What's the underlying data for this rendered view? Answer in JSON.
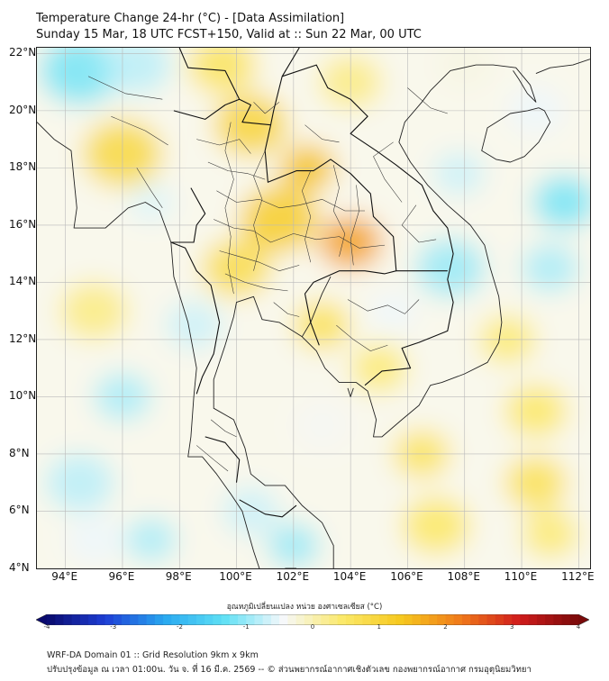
{
  "title": {
    "line1": "Temperature Change 24-hr (°C) - [Data Assimilation]",
    "line2": "Sunday 15 Mar, 18 UTC FCST+150, Valid at :: Sun 22 Mar, 00 UTC"
  },
  "axes": {
    "lat_labels": [
      "22°N",
      "20°N",
      "18°N",
      "16°N",
      "14°N",
      "12°N",
      "10°N",
      "8°N",
      "6°N",
      "4°N"
    ],
    "lon_labels": [
      "94°E",
      "96°E",
      "98°E",
      "100°E",
      "102°E",
      "104°E",
      "106°E",
      "108°E",
      "110°E",
      "112°E"
    ],
    "lat_range": [
      4,
      22.2
    ],
    "lon_range": [
      93,
      112.4
    ]
  },
  "colorbar": {
    "label": "อุณหภูมิเปลี่ยนแปลง หน่วย องศาเซลเซียส (°C)",
    "ticks": [
      "-4",
      "-3",
      "-2",
      "-1",
      "0",
      "1",
      "2",
      "3",
      "4"
    ],
    "range": [
      -4,
      4
    ],
    "colors": [
      "#0a0a6e",
      "#1e3fd6",
      "#29a9f0",
      "#5fe0f5",
      "#f6f8fb",
      "#fbe96a",
      "#f6c81e",
      "#f07a1a",
      "#d01c1c",
      "#7a0a0a"
    ]
  },
  "footer": {
    "line1": "WRF-DA Domain 01 :: Grid Resolution 9km x 9km",
    "line2": "ปรับปรุงข้อมูล ณ เวลา 01:00น. วัน จ. ที่ 16 มี.ค. 2569 -- © ส่วนพยากรณ์อากาศเชิงตัวเลข กองพยากรณ์อากาศ กรมอุตุนิยมวิทยา"
  },
  "field_anomalies": [
    {
      "lon": 94.5,
      "lat": 21.4,
      "dT": -1.2,
      "spread": 1.4
    },
    {
      "lon": 96.5,
      "lat": 21.6,
      "dT": -0.8,
      "spread": 1.2
    },
    {
      "lon": 99.5,
      "lat": 21.6,
      "dT": 0.6,
      "spread": 1.2
    },
    {
      "lon": 100.5,
      "lat": 19.5,
      "dT": 1.0,
      "spread": 1.3
    },
    {
      "lon": 96.0,
      "lat": 18.5,
      "dT": 0.9,
      "spread": 1.4
    },
    {
      "lon": 102.5,
      "lat": 18.0,
      "dT": 1.4,
      "spread": 1.0
    },
    {
      "lon": 101.5,
      "lat": 16.2,
      "dT": 1.2,
      "spread": 1.4
    },
    {
      "lon": 104.0,
      "lat": 15.4,
      "dT": 1.8,
      "spread": 1.1
    },
    {
      "lon": 100.0,
      "lat": 14.5,
      "dT": 0.8,
      "spread": 1.2
    },
    {
      "lon": 103.0,
      "lat": 12.5,
      "dT": 0.7,
      "spread": 1.0
    },
    {
      "lon": 105.0,
      "lat": 11.0,
      "dT": 0.4,
      "spread": 1.0
    },
    {
      "lon": 97.0,
      "lat": 16.8,
      "dT": -0.6,
      "spread": 0.8
    },
    {
      "lon": 98.5,
      "lat": 12.5,
      "dT": -0.7,
      "spread": 1.0
    },
    {
      "lon": 96.0,
      "lat": 10.0,
      "dT": -0.9,
      "spread": 1.0
    },
    {
      "lon": 94.5,
      "lat": 7.0,
      "dT": -0.8,
      "spread": 1.2
    },
    {
      "lon": 95.0,
      "lat": 5.0,
      "dT": -0.5,
      "spread": 1.0
    },
    {
      "lon": 97.0,
      "lat": 5.0,
      "dT": -0.9,
      "spread": 0.9
    },
    {
      "lon": 100.5,
      "lat": 6.0,
      "dT": -0.7,
      "spread": 1.0
    },
    {
      "lon": 102.0,
      "lat": 4.8,
      "dT": -1.0,
      "spread": 0.9
    },
    {
      "lon": 103.0,
      "lat": 9.0,
      "dT": -0.4,
      "spread": 1.0
    },
    {
      "lon": 105.5,
      "lat": 13.0,
      "dT": -0.5,
      "spread": 0.8
    },
    {
      "lon": 107.5,
      "lat": 14.5,
      "dT": -1.0,
      "spread": 1.2
    },
    {
      "lon": 107.8,
      "lat": 17.8,
      "dT": -0.7,
      "spread": 0.9
    },
    {
      "lon": 110.5,
      "lat": 20.0,
      "dT": -0.5,
      "spread": 1.0
    },
    {
      "lon": 111.5,
      "lat": 16.8,
      "dT": -1.2,
      "spread": 1.1
    },
    {
      "lon": 111.0,
      "lat": 14.5,
      "dT": -0.9,
      "spread": 1.0
    },
    {
      "lon": 109.5,
      "lat": 12.0,
      "dT": 0.4,
      "spread": 1.0
    },
    {
      "lon": 110.5,
      "lat": 9.5,
      "dT": 0.5,
      "spread": 1.1
    },
    {
      "lon": 106.5,
      "lat": 8.0,
      "dT": 0.6,
      "spread": 1.0
    },
    {
      "lon": 110.5,
      "lat": 7.0,
      "dT": 0.7,
      "spread": 1.1
    },
    {
      "lon": 107.0,
      "lat": 5.5,
      "dT": 0.5,
      "spread": 1.2
    },
    {
      "lon": 111.0,
      "lat": 5.2,
      "dT": 0.4,
      "spread": 1.0
    },
    {
      "lon": 95.0,
      "lat": 13.0,
      "dT": 0.3,
      "spread": 1.2
    },
    {
      "lon": 104.0,
      "lat": 21.0,
      "dT": 0.3,
      "spread": 1.1
    },
    {
      "lon": 108.0,
      "lat": 21.6,
      "dT": -0.3,
      "spread": 1.0
    }
  ],
  "coastlines": [
    [
      [
        93.0,
        19.6
      ],
      [
        93.6,
        19.0
      ],
      [
        94.2,
        18.6
      ],
      [
        94.3,
        17.6
      ],
      [
        94.4,
        16.6
      ],
      [
        94.3,
        15.9
      ],
      [
        94.9,
        15.9
      ],
      [
        95.4,
        15.9
      ],
      [
        96.2,
        16.6
      ],
      [
        96.8,
        16.8
      ],
      [
        97.3,
        16.5
      ],
      [
        97.7,
        15.4
      ],
      [
        97.8,
        14.2
      ],
      [
        98.3,
        12.6
      ],
      [
        98.6,
        11.0
      ],
      [
        98.5,
        10.0
      ],
      [
        98.4,
        8.6
      ],
      [
        98.3,
        7.9
      ],
      [
        98.8,
        7.9
      ],
      [
        99.3,
        7.3
      ],
      [
        99.8,
        6.6
      ],
      [
        100.2,
        6.0
      ],
      [
        100.4,
        5.3
      ],
      [
        100.6,
        4.6
      ],
      [
        100.8,
        4.0
      ]
    ],
    [
      [
        101.7,
        4.0
      ],
      [
        102.1,
        4.0
      ]
    ],
    [
      [
        103.4,
        4.0
      ],
      [
        103.4,
        4.8
      ],
      [
        103.0,
        5.6
      ],
      [
        102.3,
        6.2
      ],
      [
        101.7,
        6.9
      ],
      [
        101.0,
        6.9
      ],
      [
        100.5,
        7.3
      ],
      [
        100.3,
        8.2
      ],
      [
        99.9,
        9.2
      ],
      [
        99.2,
        9.6
      ],
      [
        99.2,
        10.6
      ],
      [
        99.6,
        11.8
      ],
      [
        99.9,
        12.8
      ],
      [
        100.0,
        13.3
      ],
      [
        100.6,
        13.5
      ],
      [
        100.9,
        12.7
      ],
      [
        101.5,
        12.6
      ],
      [
        102.3,
        12.1
      ],
      [
        102.8,
        11.6
      ],
      [
        103.1,
        11.0
      ],
      [
        103.6,
        10.5
      ],
      [
        104.2,
        10.5
      ],
      [
        104.6,
        10.2
      ],
      [
        104.9,
        9.2
      ],
      [
        104.8,
        8.6
      ],
      [
        105.1,
        8.6
      ],
      [
        105.8,
        9.2
      ],
      [
        106.4,
        9.7
      ],
      [
        106.8,
        10.4
      ],
      [
        107.2,
        10.5
      ],
      [
        108.0,
        10.8
      ],
      [
        108.8,
        11.2
      ],
      [
        109.2,
        11.9
      ],
      [
        109.3,
        12.6
      ],
      [
        109.2,
        13.5
      ],
      [
        108.9,
        14.5
      ],
      [
        108.7,
        15.3
      ],
      [
        108.2,
        16.0
      ],
      [
        107.4,
        16.7
      ],
      [
        106.7,
        17.4
      ],
      [
        106.1,
        18.2
      ],
      [
        105.7,
        18.9
      ],
      [
        105.9,
        19.6
      ],
      [
        106.5,
        20.3
      ],
      [
        106.8,
        20.7
      ],
      [
        107.5,
        21.4
      ],
      [
        108.4,
        21.6
      ],
      [
        109.0,
        21.6
      ],
      [
        109.8,
        21.5
      ],
      [
        110.3,
        20.9
      ],
      [
        110.5,
        20.3
      ],
      [
        110.2,
        20.6
      ],
      [
        109.9,
        21.1
      ],
      [
        109.7,
        21.4
      ]
    ],
    [
      [
        110.6,
        20.1
      ],
      [
        110.2,
        20.0
      ],
      [
        109.6,
        19.9
      ],
      [
        108.8,
        19.4
      ],
      [
        108.6,
        18.6
      ],
      [
        109.1,
        18.3
      ],
      [
        109.6,
        18.2
      ],
      [
        110.1,
        18.4
      ],
      [
        110.6,
        18.9
      ],
      [
        111.0,
        19.6
      ],
      [
        110.8,
        20.0
      ],
      [
        110.6,
        20.1
      ]
    ],
    [
      [
        110.5,
        21.3
      ],
      [
        111.0,
        21.5
      ],
      [
        111.8,
        21.6
      ],
      [
        112.4,
        21.8
      ]
    ],
    [
      [
        102.3,
        12.1
      ],
      [
        102.6,
        12.6
      ],
      [
        103.0,
        13.6
      ],
      [
        103.3,
        14.2
      ]
    ],
    [
      [
        103.9,
        10.3
      ],
      [
        104.0,
        10.0
      ],
      [
        104.1,
        10.3
      ]
    ]
  ],
  "borders": [
    [
      [
        98.0,
        22.2
      ],
      [
        98.3,
        21.5
      ],
      [
        99.6,
        21.4
      ],
      [
        100.1,
        20.4
      ],
      [
        100.5,
        20.2
      ],
      [
        100.2,
        19.6
      ],
      [
        101.2,
        19.5
      ],
      [
        101.0,
        18.6
      ],
      [
        101.1,
        17.5
      ],
      [
        102.1,
        17.9
      ],
      [
        102.7,
        17.9
      ],
      [
        103.3,
        18.3
      ],
      [
        104.0,
        17.8
      ],
      [
        104.7,
        17.1
      ],
      [
        104.8,
        16.3
      ],
      [
        105.5,
        15.6
      ],
      [
        105.6,
        14.4
      ],
      [
        105.2,
        14.3
      ],
      [
        104.5,
        14.4
      ],
      [
        103.6,
        14.4
      ],
      [
        102.7,
        14.0
      ],
      [
        102.4,
        13.6
      ],
      [
        102.6,
        12.6
      ],
      [
        102.9,
        11.8
      ]
    ],
    [
      [
        97.8,
        20.0
      ],
      [
        98.9,
        19.7
      ],
      [
        99.6,
        20.2
      ],
      [
        100.1,
        20.4
      ]
    ],
    [
      [
        97.7,
        15.4
      ],
      [
        98.2,
        15.2
      ],
      [
        98.6,
        14.4
      ],
      [
        99.1,
        13.9
      ],
      [
        99.4,
        12.6
      ],
      [
        99.2,
        11.5
      ],
      [
        98.8,
        10.7
      ],
      [
        98.6,
        10.1
      ]
    ],
    [
      [
        98.4,
        17.3
      ],
      [
        98.9,
        16.4
      ],
      [
        98.6,
        16.0
      ],
      [
        98.5,
        15.4
      ],
      [
        97.7,
        15.4
      ]
    ],
    [
      [
        101.2,
        19.5
      ],
      [
        101.3,
        20.0
      ],
      [
        101.6,
        21.2
      ],
      [
        102.2,
        22.2
      ]
    ],
    [
      [
        101.6,
        21.2
      ],
      [
        102.8,
        21.6
      ],
      [
        103.2,
        20.8
      ],
      [
        104.0,
        20.4
      ],
      [
        104.6,
        19.8
      ],
      [
        104.0,
        19.2
      ],
      [
        104.9,
        18.6
      ],
      [
        105.6,
        18.1
      ],
      [
        106.5,
        17.4
      ],
      [
        106.9,
        16.5
      ],
      [
        107.4,
        15.9
      ],
      [
        107.6,
        15.0
      ],
      [
        107.4,
        14.1
      ],
      [
        107.6,
        13.3
      ],
      [
        107.4,
        12.3
      ],
      [
        106.4,
        11.9
      ],
      [
        105.8,
        11.7
      ],
      [
        106.1,
        11.0
      ],
      [
        105.1,
        10.9
      ],
      [
        104.5,
        10.4
      ]
    ],
    [
      [
        105.6,
        14.4
      ],
      [
        106.2,
        14.4
      ],
      [
        107.4,
        14.4
      ]
    ],
    [
      [
        100.1,
        6.4
      ],
      [
        101.0,
        5.9
      ],
      [
        101.6,
        5.8
      ],
      [
        102.1,
        6.2
      ]
    ],
    [
      [
        98.9,
        8.6
      ],
      [
        99.6,
        8.4
      ],
      [
        100.1,
        7.8
      ],
      [
        100.0,
        7.0
      ]
    ]
  ],
  "provinces": [
    [
      [
        98.6,
        19.0
      ],
      [
        99.4,
        18.8
      ],
      [
        100.1,
        19.0
      ],
      [
        100.5,
        18.5
      ]
    ],
    [
      [
        99.0,
        18.2
      ],
      [
        99.7,
        17.9
      ],
      [
        100.4,
        17.8
      ],
      [
        101.0,
        17.6
      ]
    ],
    [
      [
        99.3,
        17.2
      ],
      [
        100.0,
        16.8
      ],
      [
        100.8,
        16.9
      ],
      [
        101.5,
        16.6
      ],
      [
        102.2,
        16.7
      ],
      [
        103.0,
        16.9
      ],
      [
        103.8,
        16.5
      ],
      [
        104.5,
        16.5
      ]
    ],
    [
      [
        99.2,
        16.2
      ],
      [
        99.9,
        15.9
      ],
      [
        100.6,
        15.8
      ],
      [
        101.2,
        15.4
      ],
      [
        102.0,
        15.7
      ],
      [
        102.8,
        15.5
      ],
      [
        103.6,
        15.6
      ],
      [
        104.3,
        15.2
      ],
      [
        105.2,
        15.3
      ]
    ],
    [
      [
        99.4,
        15.1
      ],
      [
        100.1,
        14.9
      ],
      [
        100.8,
        14.7
      ],
      [
        101.5,
        14.4
      ],
      [
        102.2,
        14.6
      ]
    ],
    [
      [
        99.6,
        14.3
      ],
      [
        100.3,
        14.0
      ],
      [
        101.0,
        13.8
      ],
      [
        101.8,
        13.7
      ]
    ],
    [
      [
        102.6,
        17.9
      ],
      [
        102.3,
        17.2
      ],
      [
        102.6,
        16.3
      ],
      [
        102.4,
        15.5
      ],
      [
        102.6,
        14.7
      ]
    ],
    [
      [
        103.4,
        18.1
      ],
      [
        103.6,
        17.3
      ],
      [
        103.4,
        16.5
      ],
      [
        103.8,
        15.7
      ],
      [
        103.6,
        14.9
      ]
    ],
    [
      [
        101.0,
        18.6
      ],
      [
        100.6,
        17.7
      ],
      [
        100.9,
        16.9
      ],
      [
        100.6,
        16.0
      ],
      [
        100.8,
        15.2
      ],
      [
        100.6,
        14.4
      ]
    ],
    [
      [
        99.8,
        19.6
      ],
      [
        99.6,
        18.6
      ],
      [
        99.9,
        17.6
      ],
      [
        99.6,
        16.6
      ],
      [
        99.8,
        15.6
      ],
      [
        99.7,
        14.6
      ],
      [
        99.9,
        13.6
      ]
    ],
    [
      [
        104.2,
        17.4
      ],
      [
        104.3,
        16.5
      ],
      [
        104.0,
        15.5
      ],
      [
        104.1,
        14.6
      ]
    ],
    [
      [
        102.2,
        12.8
      ],
      [
        101.8,
        12.9
      ],
      [
        101.3,
        13.3
      ]
    ],
    [
      [
        99.1,
        9.2
      ],
      [
        99.6,
        8.8
      ],
      [
        100.0,
        8.6
      ]
    ],
    [
      [
        98.6,
        8.3
      ],
      [
        99.2,
        7.8
      ],
      [
        99.7,
        7.4
      ]
    ],
    [
      [
        102.4,
        19.5
      ],
      [
        103.0,
        19.0
      ],
      [
        103.6,
        18.9
      ]
    ],
    [
      [
        100.6,
        20.3
      ],
      [
        101.0,
        19.9
      ],
      [
        101.5,
        20.3
      ]
    ],
    [
      [
        105.5,
        18.9
      ],
      [
        104.8,
        18.4
      ],
      [
        105.2,
        17.6
      ],
      [
        105.8,
        16.8
      ]
    ],
    [
      [
        106.3,
        16.7
      ],
      [
        105.8,
        16.0
      ],
      [
        106.4,
        15.4
      ],
      [
        107.0,
        15.5
      ]
    ],
    [
      [
        103.9,
        13.4
      ],
      [
        104.6,
        13.0
      ],
      [
        105.3,
        13.2
      ],
      [
        105.9,
        12.9
      ],
      [
        106.4,
        13.4
      ]
    ],
    [
      [
        103.5,
        12.5
      ],
      [
        104.1,
        12.0
      ],
      [
        104.7,
        11.6
      ],
      [
        105.3,
        11.8
      ]
    ],
    [
      [
        96.5,
        18.0
      ],
      [
        97.0,
        17.2
      ],
      [
        97.4,
        16.6
      ]
    ],
    [
      [
        95.6,
        19.8
      ],
      [
        96.8,
        19.3
      ],
      [
        97.6,
        18.8
      ]
    ],
    [
      [
        94.8,
        21.2
      ],
      [
        96.1,
        20.6
      ],
      [
        97.4,
        20.4
      ]
    ],
    [
      [
        106.0,
        20.8
      ],
      [
        106.8,
        20.1
      ],
      [
        107.4,
        19.9
      ]
    ]
  ]
}
